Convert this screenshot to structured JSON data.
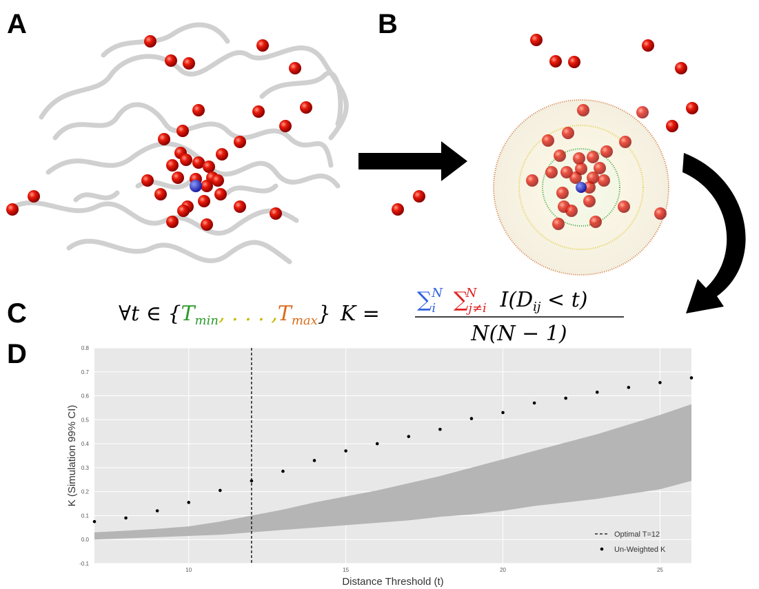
{
  "panels": {
    "a": "A",
    "b": "B",
    "c": "C",
    "d": "D"
  },
  "formula": {
    "forall": "∀t ∈ {",
    "t_min": "T",
    "t_min_sub": "min",
    "ellipsis": ", . . . ,",
    "t_max": "T",
    "t_max_sub": "max",
    "close": "}",
    "lhs": "K =",
    "sum_i": "∑",
    "sum_i_sub": "i",
    "sum_i_sup": "N",
    "sum_j": "∑",
    "sum_j_sub": "j≠i",
    "sum_j_sup": "N",
    "indicator": "I(D",
    "indicator_sub": "ij",
    "indicator_end": " < t)",
    "denominator": "N(N − 1)"
  },
  "chart_data": {
    "type": "scatter",
    "x_label": "Distance Threshold (t)",
    "y_label": "K (Simulation 99% CI)",
    "x": [
      7,
      8,
      9,
      10,
      11,
      12,
      13,
      14,
      15,
      16,
      17,
      18,
      19,
      20,
      21,
      22,
      23,
      24,
      25,
      26
    ],
    "series": [
      {
        "name": "Un-Weighted K",
        "color": "#000000",
        "values": [
          0.075,
          0.09,
          0.12,
          0.155,
          0.205,
          0.245,
          0.285,
          0.33,
          0.37,
          0.4,
          0.43,
          0.46,
          0.505,
          0.53,
          0.57,
          0.59,
          0.615,
          0.635,
          0.655,
          0.675
        ]
      }
    ],
    "band": {
      "color": "#b5b5b5",
      "lower": [
        0.0,
        0.005,
        0.01,
        0.015,
        0.02,
        0.03,
        0.04,
        0.05,
        0.06,
        0.07,
        0.08,
        0.095,
        0.105,
        0.12,
        0.14,
        0.155,
        0.17,
        0.19,
        0.21,
        0.245
      ],
      "upper": [
        0.03,
        0.037,
        0.045,
        0.055,
        0.075,
        0.1,
        0.125,
        0.155,
        0.18,
        0.205,
        0.235,
        0.265,
        0.3,
        0.335,
        0.37,
        0.405,
        0.44,
        0.48,
        0.52,
        0.565
      ]
    },
    "vline": {
      "x": 12,
      "name": "Optimal T=12",
      "color": "#000000"
    },
    "xlim": [
      7,
      26
    ],
    "xticks": [
      10,
      15,
      20,
      25
    ],
    "ylim": [
      -0.1,
      0.8
    ],
    "yticks": [
      -0.1,
      {
        "value": 0,
        "label": "0.0"
      },
      0.1,
      0.2,
      0.3,
      0.4,
      0.5,
      0.6,
      0.7,
      0.8
    ],
    "grid": true,
    "legend": "lower right"
  }
}
